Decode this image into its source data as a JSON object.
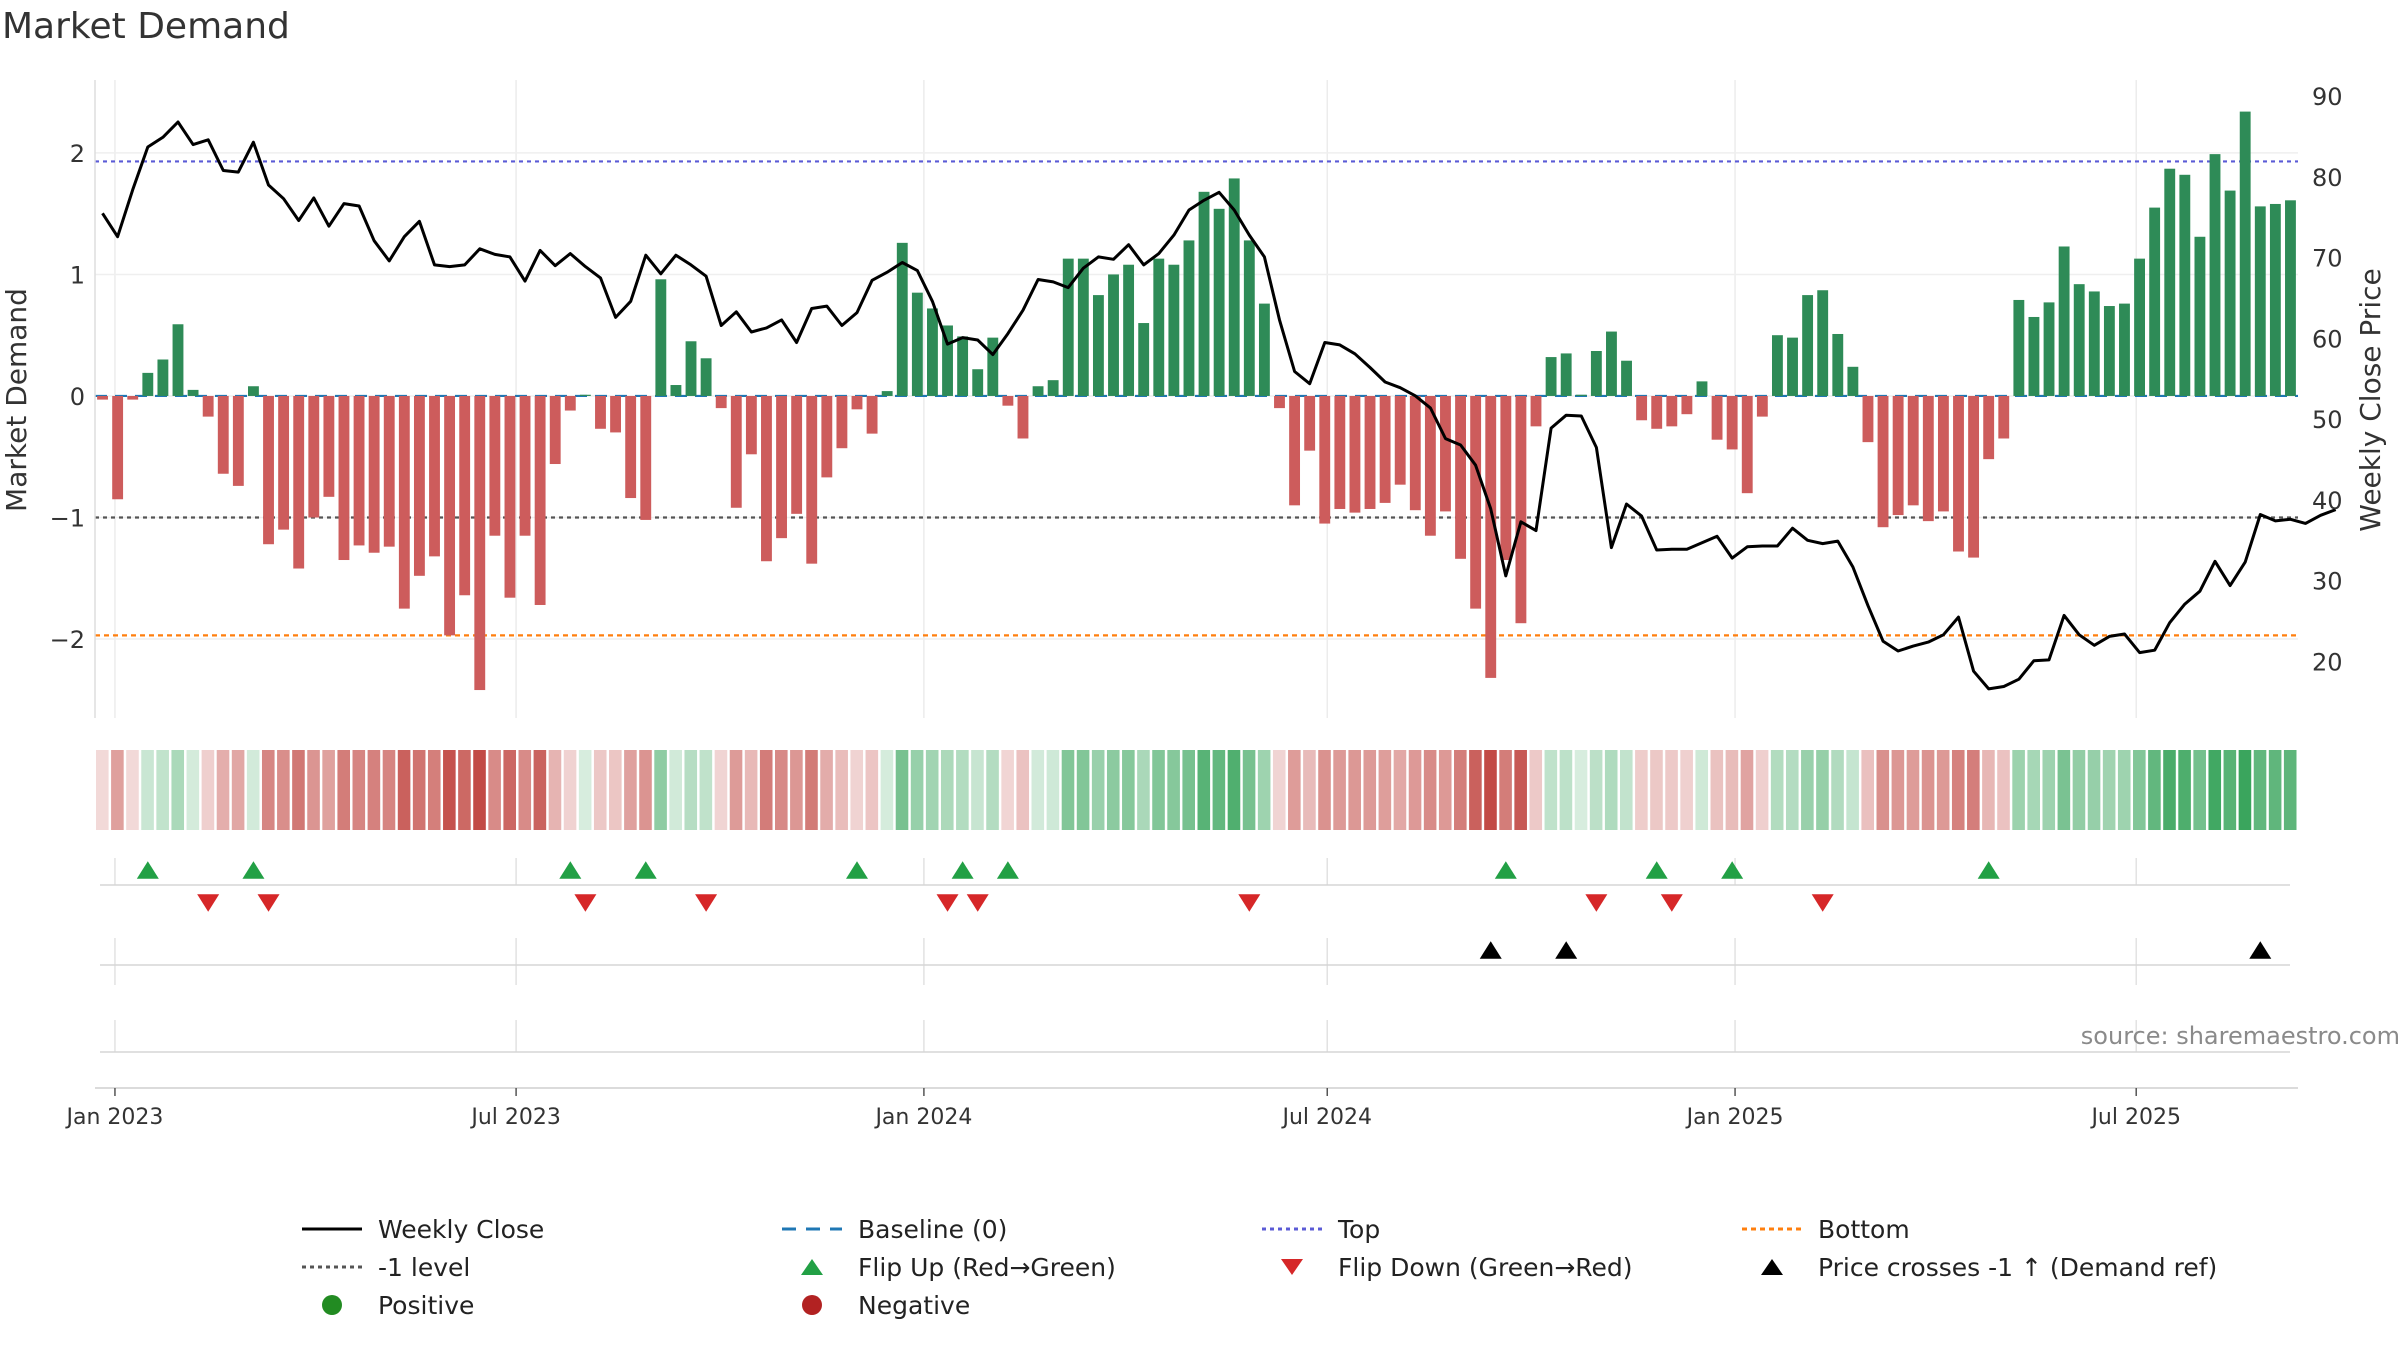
{
  "chart_data": {
    "type": "bar",
    "title": "Market Demand",
    "ylabel_left": "Market Demand",
    "ylabel_right": "Weekly Close Price",
    "ylim_left": [
      -2.65,
      2.6
    ],
    "yticks_left": [
      -2,
      -1,
      0,
      1,
      2
    ],
    "ylim_right": [
      13,
      92
    ],
    "yticks_right": [
      20,
      30,
      40,
      50,
      60,
      70,
      80,
      90
    ],
    "x_tick_labels": [
      "Jan 2023",
      "Jul 2023",
      "Jan 2024",
      "Jul 2024",
      "Jan 2025",
      "Jul 2025"
    ],
    "x_tick_dates": [
      "2023-01-01",
      "2023-07-01",
      "2024-01-01",
      "2024-07-01",
      "2025-01-01",
      "2025-07-01"
    ],
    "start_date": "2022-12-23",
    "end_date": "2025-09-12",
    "levels": {
      "top": 1.93,
      "minus_one": -1.0,
      "bottom": -1.97,
      "baseline": 0
    },
    "demand": [
      -0.03,
      -0.85,
      -0.03,
      0.19,
      0.3,
      0.59,
      0.05,
      -0.17,
      -0.64,
      -0.74,
      0.08,
      -1.22,
      -1.1,
      -1.42,
      -1.0,
      -0.83,
      -1.35,
      -1.23,
      -1.29,
      -1.24,
      -1.75,
      -1.48,
      -1.32,
      -1.97,
      -1.64,
      -2.42,
      -1.15,
      -1.66,
      -1.15,
      -1.72,
      -0.56,
      -0.12,
      0.01,
      -0.27,
      -0.3,
      -0.84,
      -1.02,
      0.96,
      0.09,
      0.45,
      0.31,
      -0.1,
      -0.92,
      -0.48,
      -1.36,
      -1.17,
      -0.97,
      -1.38,
      -0.67,
      -0.43,
      -0.11,
      -0.31,
      0.04,
      1.26,
      0.85,
      0.72,
      0.58,
      0.49,
      0.22,
      0.48,
      -0.08,
      -0.35,
      0.08,
      0.13,
      1.13,
      1.13,
      0.83,
      1.0,
      1.08,
      0.6,
      1.13,
      1.08,
      1.28,
      1.68,
      1.54,
      1.79,
      1.28,
      0.76,
      -0.1,
      -0.9,
      -0.45,
      -1.05,
      -0.93,
      -0.96,
      -0.93,
      -0.88,
      -0.73,
      -0.94,
      -1.15,
      -0.95,
      -1.34,
      -1.75,
      -2.32,
      -1.35,
      -1.87,
      -0.25,
      0.32,
      0.35,
      0.01,
      0.37,
      0.53,
      0.29,
      -0.2,
      -0.27,
      -0.25,
      -0.15,
      0.12,
      -0.36,
      -0.44,
      -0.8,
      -0.17,
      0.5,
      0.48,
      0.83,
      0.87,
      0.51,
      0.24,
      -0.38,
      -1.08,
      -0.98,
      -0.9,
      -1.03,
      -0.95,
      -1.28,
      -1.33,
      -0.52,
      -0.35,
      0.79,
      0.65,
      0.77,
      1.23,
      0.92,
      0.86,
      0.74,
      0.76,
      1.13,
      1.55,
      1.87,
      1.82,
      1.31,
      1.99,
      1.69,
      2.34,
      1.56,
      1.58,
      1.61
    ],
    "price": [
      75.5,
      72.6,
      78.4,
      83.7,
      84.9,
      86.8,
      84.0,
      84.6,
      80.8,
      80.6,
      84.3,
      79.0,
      77.3,
      74.6,
      77.4,
      73.9,
      76.7,
      76.4,
      72.1,
      69.6,
      72.6,
      74.5,
      69.1,
      68.9,
      69.1,
      71.1,
      70.4,
      70.1,
      67.1,
      70.9,
      69.0,
      70.5,
      68.9,
      67.5,
      62.6,
      64.6,
      70.3,
      68.0,
      70.3,
      69.1,
      67.7,
      61.6,
      63.3,
      60.8,
      61.3,
      62.3,
      59.5,
      63.7,
      64.0,
      61.6,
      63.2,
      67.2,
      68.2,
      69.4,
      68.4,
      64.6,
      59.3,
      60.1,
      59.8,
      58.0,
      60.6,
      63.5,
      67.3,
      67.0,
      66.3,
      68.7,
      70.1,
      69.8,
      71.6,
      69.1,
      70.5,
      72.8,
      75.9,
      77.1,
      78.1,
      75.9,
      72.8,
      70.1,
      62.3,
      55.9,
      54.4,
      59.5,
      59.2,
      58.1,
      56.4,
      54.6,
      53.9,
      52.9,
      51.4,
      47.6,
      46.8,
      44.3,
      38.9,
      30.6,
      37.3,
      36.2,
      48.9,
      50.5,
      50.4,
      46.5,
      34.1,
      39.5,
      38.0,
      33.8,
      33.9,
      33.9,
      34.7,
      35.5,
      32.8,
      34.2,
      34.3,
      34.3,
      36.5,
      35.0,
      34.6,
      34.9,
      31.7,
      26.9,
      22.5,
      21.3,
      21.9,
      22.4,
      23.3,
      25.5,
      18.8,
      16.6,
      16.9,
      17.8,
      20.1,
      20.2,
      25.7,
      23.3,
      22.0,
      23.1,
      23.4,
      21.1,
      21.4,
      24.8,
      27.1,
      28.7,
      32.4,
      29.4,
      32.3,
      38.2,
      37.4,
      37.6,
      37.1,
      38.1,
      38.8
    ],
    "flips_up": [
      3,
      10,
      31,
      36,
      50,
      57,
      60,
      93,
      103,
      108,
      125
    ],
    "flips_down": [
      7,
      11,
      32,
      40,
      56,
      58,
      76,
      99,
      104,
      114
    ],
    "price_crosses": [
      92,
      97,
      143
    ],
    "legend": [
      {
        "key": "weekly-close",
        "label": "Weekly Close"
      },
      {
        "key": "baseline",
        "label": "Baseline (0)"
      },
      {
        "key": "top",
        "label": "Top"
      },
      {
        "key": "bottom",
        "label": "Bottom"
      },
      {
        "key": "minus-one",
        "label": "-1 level"
      },
      {
        "key": "flip-up",
        "label": "Flip Up (Red→Green)"
      },
      {
        "key": "flip-down",
        "label": "Flip Down (Green→Red)"
      },
      {
        "key": "price-cross",
        "label": "Price crosses -1 ↑ (Demand ref)"
      },
      {
        "key": "positive",
        "label": "Positive"
      },
      {
        "key": "negative",
        "label": "Negative"
      }
    ],
    "grid": true,
    "legend_placement": "bottom"
  },
  "source_note": "source: sharemaestro.com",
  "colors": {
    "positive_bar": "#2e8b57",
    "negative_bar": "#cd5c5c",
    "price_line": "#000000",
    "baseline": "#1f77b4",
    "top": "#5b5bd6",
    "bottom": "#ff7f0e",
    "minus_one": "#555555",
    "flip_up": "#22a045",
    "flip_down": "#d62728",
    "price_cross": "#000000",
    "positive_dot": "#228b22",
    "negative_dot": "#b22222"
  }
}
